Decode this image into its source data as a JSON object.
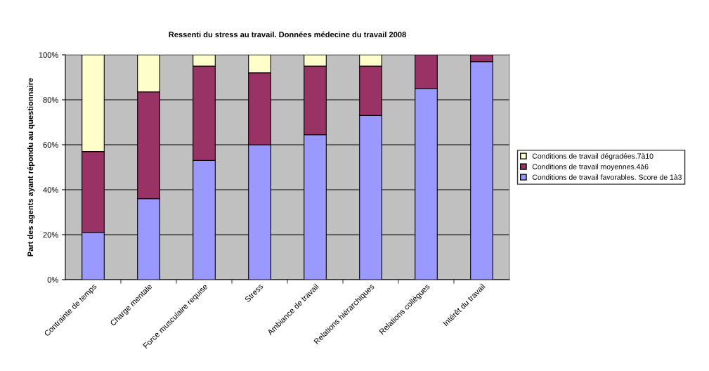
{
  "chart_data": {
    "type": "bar",
    "stacked": true,
    "title": "Ressenti du stress au travail. Données médecine du travail 2008",
    "ylabel": "Part des agents ayant répondu au questionnaire",
    "categories": [
      "Contrainte de temps",
      "Charge mentale",
      "Force musculaire requise",
      "Stress",
      "Ambiance de travail",
      "Relations hiérarchiques",
      "Relations collègues",
      "Intérêt du travail"
    ],
    "series": [
      {
        "name": "Conditions de travail favorables. Score de 1à3",
        "color": "#9999ff",
        "values": [
          21,
          36,
          53,
          60,
          64.5,
          73,
          85,
          97
        ]
      },
      {
        "name": "Conditions de travail moyennes.4à6",
        "color": "#993366",
        "values": [
          36,
          47.5,
          42,
          32,
          30.5,
          22,
          15,
          3
        ]
      },
      {
        "name": "Conditions de travail dégradées.7à10",
        "color": "#ffffcc",
        "values": [
          43,
          16.5,
          5,
          8,
          5,
          5,
          null,
          null
        ]
      }
    ],
    "ylim": [
      0,
      100
    ],
    "yticks": [
      {
        "value": 0,
        "label": "0%"
      },
      {
        "value": 20,
        "label": "20%"
      },
      {
        "value": 40,
        "label": "40%"
      },
      {
        "value": 60,
        "label": "60%"
      },
      {
        "value": 80,
        "label": "80%"
      },
      {
        "value": 100,
        "label": "100%"
      }
    ],
    "grid": "y",
    "legend": "right"
  }
}
